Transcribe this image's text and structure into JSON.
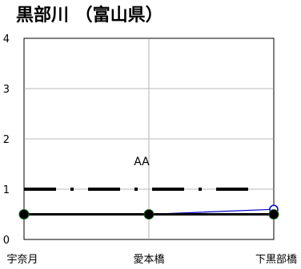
{
  "chart_data": {
    "type": "line",
    "title": "黒部川 （富山県）",
    "xlabel": "",
    "ylabel": "",
    "categories": [
      "宇奈月",
      "愛本橋",
      "下黒部橋"
    ],
    "ylim": [
      0,
      4
    ],
    "yticks": [
      0,
      1,
      2,
      3,
      4
    ],
    "grid": true,
    "annotation": "AA",
    "reference_line": {
      "y": 1,
      "style": "dash-dot",
      "color": "#000000"
    },
    "series": [
      {
        "values": [
          0.5,
          0.5,
          0.5
        ],
        "color": "#000000",
        "marker": "filled-circle",
        "marker_color": "#000000"
      },
      {
        "values": [
          0.5,
          0.5,
          0.6
        ],
        "color": "#0000cc",
        "marker": "open-circle",
        "marker_color": "#0000cc"
      }
    ]
  }
}
